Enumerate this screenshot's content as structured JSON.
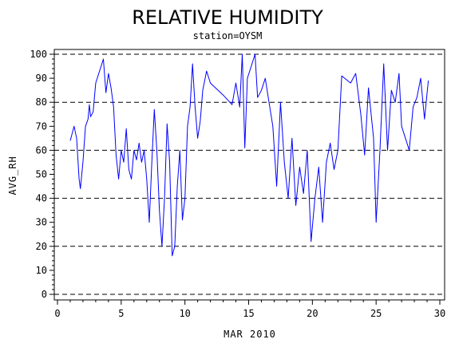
{
  "chart_data": {
    "type": "line",
    "title": "RELATIVE HUMIDITY",
    "subtitle": "station=OYSM",
    "xlabel": "MAR 2010",
    "ylabel": "AVG_RH",
    "xlim": [
      0,
      30
    ],
    "ylim": [
      0,
      100
    ],
    "x_ticks": [
      0,
      5,
      10,
      15,
      20,
      25,
      30
    ],
    "y_ticks": [
      0,
      10,
      20,
      30,
      40,
      50,
      60,
      70,
      80,
      90,
      100
    ],
    "grid": "horizontal dashed at 0, 20, 40, 60, 80, 100",
    "colors": {
      "line": "#0000ff",
      "axis": "#000000",
      "grid": "#000000"
    },
    "series": [
      {
        "values": [
          [
            1.0,
            64
          ],
          [
            1.3,
            70
          ],
          [
            1.5,
            65
          ],
          [
            1.7,
            48
          ],
          [
            1.8,
            44
          ],
          [
            2.0,
            55
          ],
          [
            2.2,
            70
          ],
          [
            2.4,
            73
          ],
          [
            2.5,
            79
          ],
          [
            2.6,
            74
          ],
          [
            2.8,
            76
          ],
          [
            3.0,
            88
          ],
          [
            3.3,
            93
          ],
          [
            3.6,
            98
          ],
          [
            3.8,
            84
          ],
          [
            4.0,
            92
          ],
          [
            4.2,
            86
          ],
          [
            4.4,
            78
          ],
          [
            4.6,
            58
          ],
          [
            4.8,
            48
          ],
          [
            5.0,
            60
          ],
          [
            5.2,
            55
          ],
          [
            5.4,
            69
          ],
          [
            5.6,
            52
          ],
          [
            5.8,
            48
          ],
          [
            6.0,
            60
          ],
          [
            6.2,
            56
          ],
          [
            6.4,
            63
          ],
          [
            6.6,
            55
          ],
          [
            6.8,
            60
          ],
          [
            7.0,
            48
          ],
          [
            7.2,
            30
          ],
          [
            7.4,
            55
          ],
          [
            7.6,
            77
          ],
          [
            7.8,
            60
          ],
          [
            8.0,
            35
          ],
          [
            8.2,
            20
          ],
          [
            8.4,
            40
          ],
          [
            8.6,
            71
          ],
          [
            8.8,
            55
          ],
          [
            9.0,
            16
          ],
          [
            9.2,
            20
          ],
          [
            9.4,
            45
          ],
          [
            9.6,
            60
          ],
          [
            9.8,
            31
          ],
          [
            10.0,
            40
          ],
          [
            10.2,
            70
          ],
          [
            10.4,
            78
          ],
          [
            10.6,
            96
          ],
          [
            10.8,
            78
          ],
          [
            11.0,
            65
          ],
          [
            11.2,
            72
          ],
          [
            11.4,
            85
          ],
          [
            11.7,
            93
          ],
          [
            12.0,
            88
          ],
          [
            13.0,
            83
          ],
          [
            13.7,
            79
          ],
          [
            14.0,
            88
          ],
          [
            14.3,
            78
          ],
          [
            14.5,
            100
          ],
          [
            14.7,
            61
          ],
          [
            14.9,
            90
          ],
          [
            15.2,
            95
          ],
          [
            15.5,
            100
          ],
          [
            15.7,
            82
          ],
          [
            16.0,
            85
          ],
          [
            16.3,
            90
          ],
          [
            16.6,
            80
          ],
          [
            16.9,
            70
          ],
          [
            17.2,
            45
          ],
          [
            17.5,
            80
          ],
          [
            17.8,
            55
          ],
          [
            18.1,
            40
          ],
          [
            18.4,
            65
          ],
          [
            18.7,
            37
          ],
          [
            19.0,
            53
          ],
          [
            19.3,
            42
          ],
          [
            19.6,
            60
          ],
          [
            19.9,
            22
          ],
          [
            20.2,
            40
          ],
          [
            20.5,
            53
          ],
          [
            20.8,
            30
          ],
          [
            21.1,
            55
          ],
          [
            21.4,
            63
          ],
          [
            21.7,
            52
          ],
          [
            22.0,
            60
          ],
          [
            22.3,
            91
          ],
          [
            23.0,
            88
          ],
          [
            23.4,
            92
          ],
          [
            23.8,
            75
          ],
          [
            24.1,
            58
          ],
          [
            24.4,
            86
          ],
          [
            24.8,
            65
          ],
          [
            25.0,
            30
          ],
          [
            25.3,
            60
          ],
          [
            25.6,
            96
          ],
          [
            25.9,
            60
          ],
          [
            26.2,
            85
          ],
          [
            26.5,
            80
          ],
          [
            26.8,
            92
          ],
          [
            27.0,
            70
          ],
          [
            27.3,
            65
          ],
          [
            27.6,
            60
          ],
          [
            27.9,
            78
          ],
          [
            28.2,
            82
          ],
          [
            28.5,
            90
          ],
          [
            28.8,
            73
          ],
          [
            29.1,
            89
          ]
        ]
      }
    ]
  }
}
